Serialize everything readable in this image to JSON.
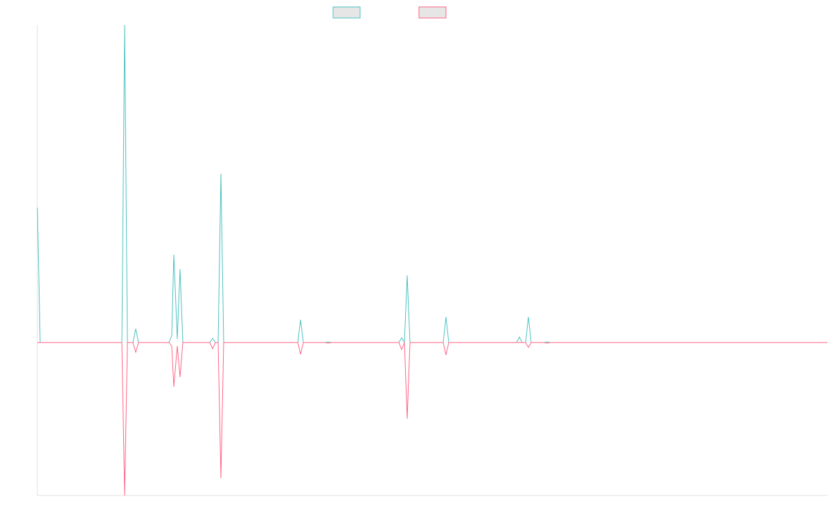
{
  "chart_data": {
    "type": "line",
    "x": [
      0,
      4,
      122,
      126,
      130,
      138,
      142,
      146,
      190,
      194,
      197,
      202,
      206,
      210,
      249,
      253,
      257,
      261,
      265,
      269,
      376,
      380,
      384,
      416,
      420,
      424,
      522,
      526,
      530,
      534,
      538,
      586,
      590,
      594,
      692,
      696,
      700,
      705,
      709,
      713,
      732,
      736,
      740,
      1141
    ],
    "series": [
      {
        "color": "#4bc0c0",
        "values": [
          195,
          0,
          0,
          459,
          0,
          0,
          20,
          0,
          0,
          10,
          127,
          5,
          106,
          0,
          0,
          6,
          0,
          0,
          244,
          0,
          0,
          33,
          0,
          0,
          1,
          0,
          0,
          7,
          0,
          97,
          0,
          0,
          37,
          0,
          0,
          8,
          0,
          0,
          37,
          0,
          0,
          1,
          0,
          0
        ]
      },
      {
        "color": "#ff6384",
        "values": [
          0,
          0,
          0,
          -221,
          0,
          0,
          -14,
          0,
          0,
          -5,
          -64,
          -5,
          -50,
          0,
          0,
          -9,
          0,
          0,
          -196,
          0,
          0,
          -17,
          0,
          0,
          -1,
          0,
          0,
          -10,
          0,
          -110,
          0,
          0,
          -18,
          0,
          0,
          0,
          0,
          0,
          -7,
          0,
          0,
          -1,
          0,
          0
        ]
      }
    ],
    "xlim": [
      0,
      1141
    ],
    "ylim": [
      -221,
      459
    ]
  }
}
